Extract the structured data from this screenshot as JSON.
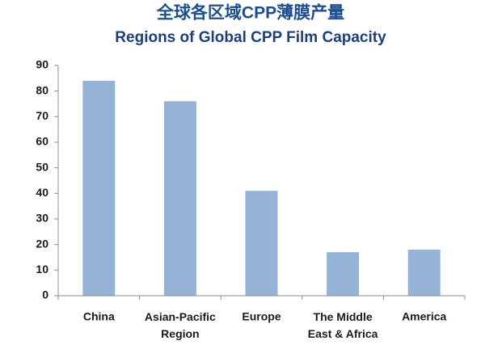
{
  "chart_data": {
    "type": "bar",
    "title": "全球各区域CPP薄膜产量",
    "subtitle": "Regions of Global CPP Film Capacity",
    "categories": [
      "China",
      "Asian-Pacific\nRegion",
      "Europe",
      "The Middle\nEast & Africa",
      "America"
    ],
    "values": [
      84,
      76,
      41,
      17,
      18
    ],
    "color": "#95b3d7",
    "ylim": [
      0,
      90
    ],
    "yticks": [
      0,
      10,
      20,
      30,
      40,
      50,
      60,
      70,
      80,
      90
    ],
    "grid": false
  }
}
